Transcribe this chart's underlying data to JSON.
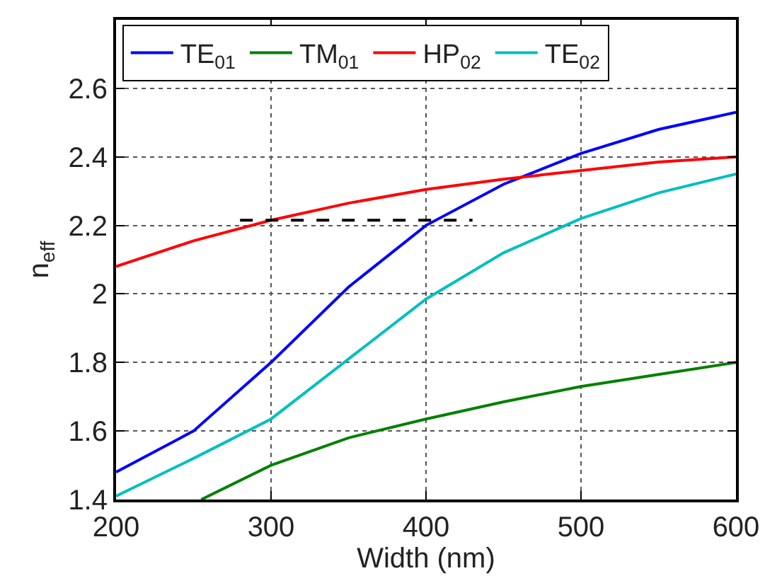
{
  "chart_data": {
    "type": "line",
    "xlabel": "Width (nm)",
    "ylabel": "n$_{eff}$",
    "x": [
      200,
      250,
      300,
      350,
      400,
      450,
      500,
      550,
      600
    ],
    "series": [
      {
        "name": "TE$_{01}$",
        "color": "#0000ff",
        "values": [
          1.48,
          1.6,
          1.8,
          2.02,
          2.2,
          2.32,
          2.41,
          2.48,
          2.53
        ]
      },
      {
        "name": "TM$_{01}$",
        "color": "#008000",
        "x": [
          255,
          300,
          350,
          400,
          450,
          500,
          550,
          600
        ],
        "values": [
          1.4,
          1.5,
          1.58,
          1.635,
          1.685,
          1.73,
          1.765,
          1.8
        ]
      },
      {
        "name": "HP$_{02}$",
        "color": "#ff0000",
        "values": [
          2.08,
          2.155,
          2.215,
          2.265,
          2.305,
          2.335,
          2.36,
          2.385,
          2.4
        ]
      },
      {
        "name": "TE$_{02}$",
        "color": "#00bfbf",
        "values": [
          1.41,
          1.52,
          1.635,
          1.81,
          1.985,
          2.12,
          2.22,
          2.295,
          2.35
        ]
      },
      {
        "color": "#000000",
        "line_style": "dashed",
        "x": [
          280,
          430
        ],
        "values": [
          2.215,
          2.215
        ]
      }
    ],
    "xlim": [
      200,
      600
    ],
    "xticks": [
      200,
      300,
      400,
      500,
      600
    ],
    "ylim": [
      1.4,
      2.8
    ],
    "yticks": [
      1.4,
      1.6,
      1.8,
      2,
      2.2,
      2.4,
      2.6
    ],
    "grid": true,
    "legend": "top left",
    "marker": "none",
    "line_style": "solid"
  }
}
